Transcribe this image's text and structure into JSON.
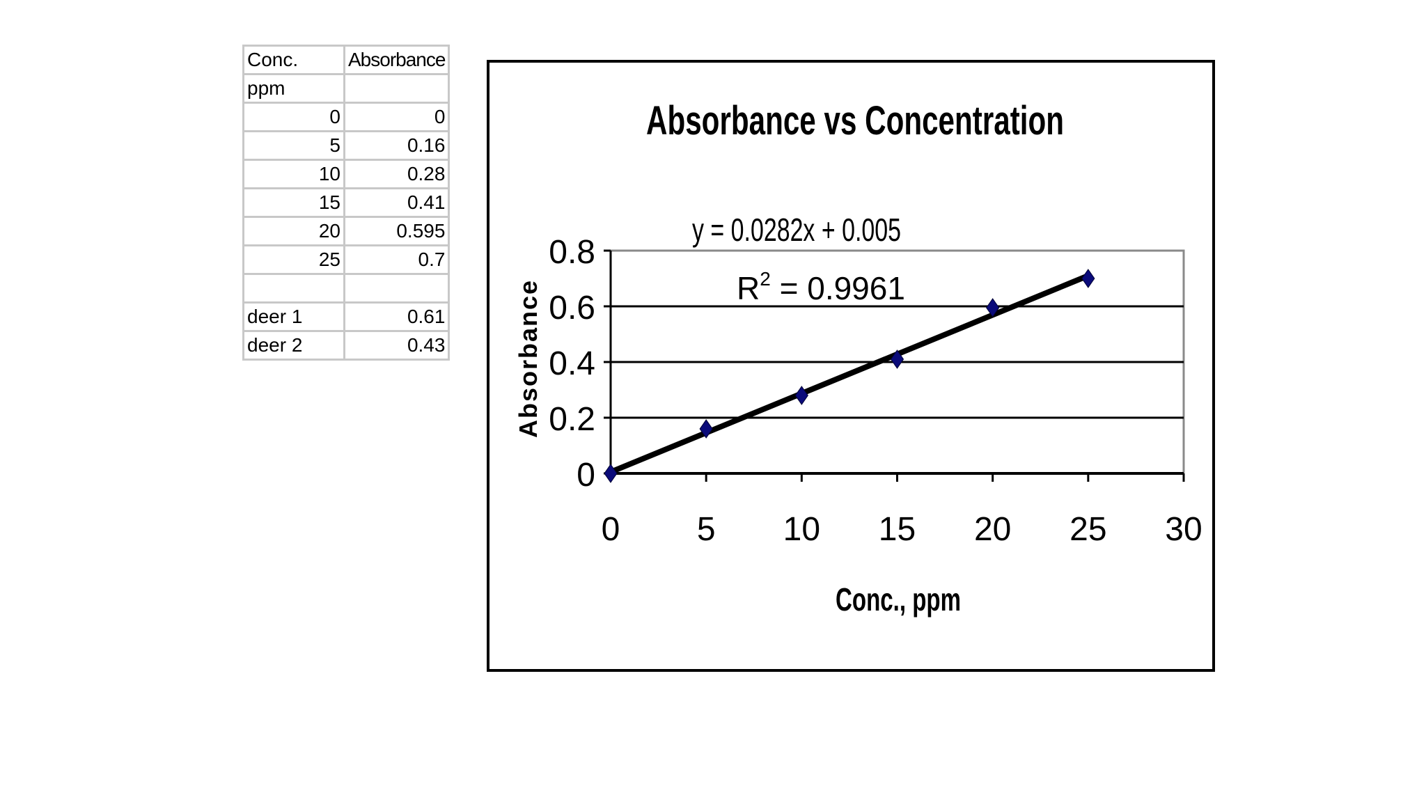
{
  "table": {
    "rows": [
      {
        "a": "Conc.",
        "b": "Absorbance"
      },
      {
        "a": "ppm",
        "b": ""
      },
      {
        "a": "0",
        "b": "0"
      },
      {
        "a": "5",
        "b": "0.16"
      },
      {
        "a": "10",
        "b": "0.28"
      },
      {
        "a": "15",
        "b": "0.41"
      },
      {
        "a": "20",
        "b": "0.595"
      },
      {
        "a": "25",
        "b": "0.7"
      },
      {
        "a": "",
        "b": ""
      },
      {
        "a": "deer 1",
        "b": "0.61"
      },
      {
        "a": "deer 2",
        "b": "0.43"
      }
    ]
  },
  "chart_data": {
    "type": "scatter",
    "title": "Absorbance vs Concentration",
    "xlabel": "Conc., ppm",
    "ylabel": "Absorbance",
    "xlim": [
      0,
      30
    ],
    "ylim": [
      0,
      0.8
    ],
    "xticks": [
      "0",
      "5",
      "10",
      "15",
      "20",
      "25",
      "30"
    ],
    "yticks": [
      "0",
      "0.2",
      "0.4",
      "0.6",
      "0.8"
    ],
    "grid": "horizontal",
    "series": [
      {
        "x": [
          0,
          5,
          10,
          15,
          20,
          25
        ],
        "y": [
          0,
          0.16,
          0.28,
          0.41,
          0.595,
          0.7
        ],
        "marker": "diamond",
        "color": "#0b0b7a"
      }
    ],
    "trendline": {
      "slope": 0.0282,
      "intercept": 0.005,
      "equation": "y = 0.0282x + 0.005",
      "r2_label": "R",
      "r2_sup": "2",
      "r2_value": " = 0.9961",
      "color": "#000000"
    }
  }
}
